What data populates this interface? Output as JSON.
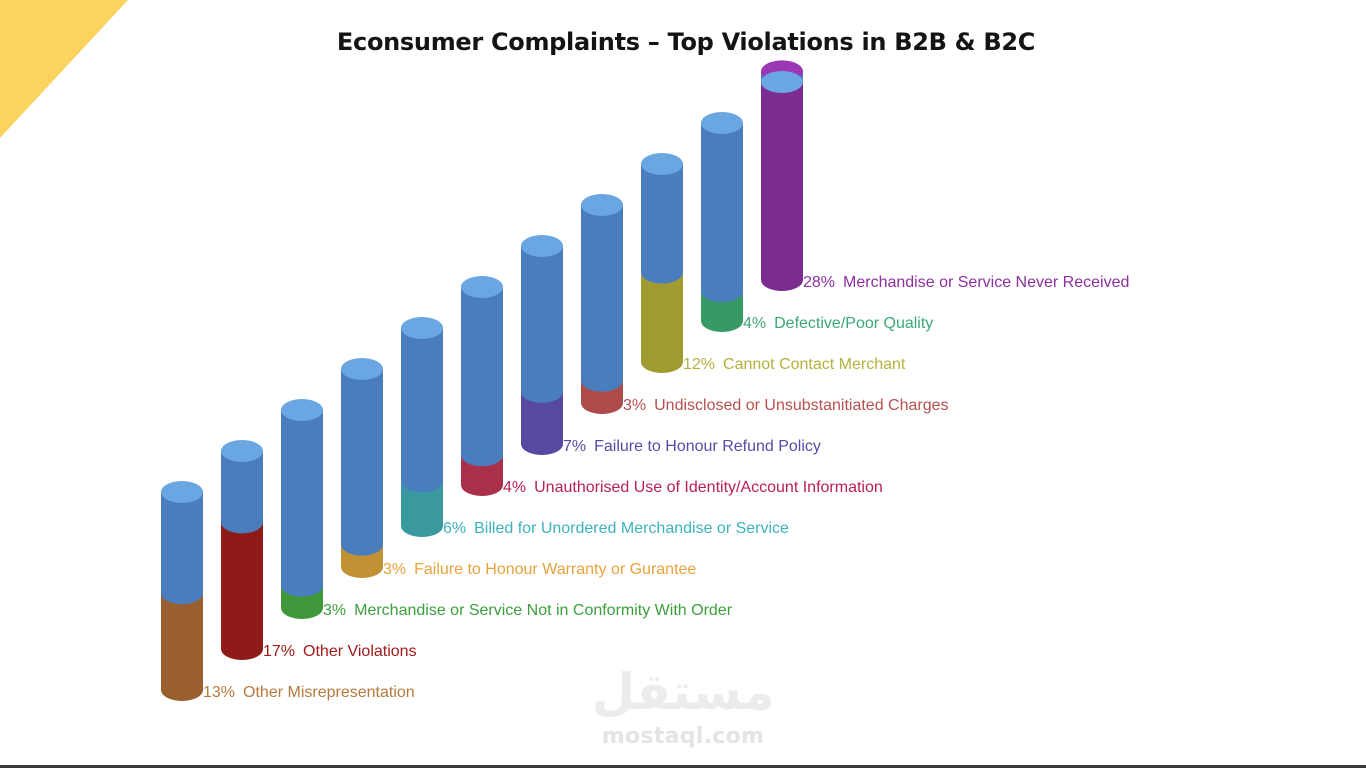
{
  "title": "Econsumer Complaints – Top Violations in B2B & B2C",
  "colors": {
    "background": "#ffffff",
    "corner_accent": "#fdd35f",
    "column_body": "#4a7dbd",
    "column_top": "#6aa6e2"
  },
  "watermark": {
    "arabic": "مستقل",
    "url": "mostaql.com"
  },
  "chart_data": {
    "type": "bar",
    "style": "3d-cylinder-columns",
    "title": "Econsumer Complaints – Top Violations in B2B & B2C",
    "unit": "%",
    "categories": [
      "Other Misrepresentation",
      "Other Violations",
      "Merchandise or Service Not in Conformity With Order",
      "Failure to Honour Warranty or Gurantee",
      "Billed for Unordered Merchandise or Service",
      "Unauthorised Use of Identity/Account Information",
      "Failure to Honour Refund Policy",
      "Undisclosed or Unsubstanitiated Charges",
      "Cannot Contact Merchant",
      "Defective/Poor Quality",
      "Merchandise or Service Never Received"
    ],
    "values": [
      13,
      17,
      3,
      3,
      6,
      4,
      7,
      3,
      12,
      4,
      28
    ],
    "value_labels": [
      "13%",
      "17%",
      "3%",
      "3%",
      "6%",
      "4%",
      "7%",
      "3%",
      "12%",
      "4%",
      "28%"
    ],
    "segment_colors": [
      "#c1773b",
      "#b3221f",
      "#4fbf4a",
      "#f2b540",
      "#48bfc7",
      "#d33b5c",
      "#6b5bc7",
      "#d85c5c",
      "#c9c33d",
      "#45c07e",
      "#9b36b5"
    ],
    "label_colors": [
      "#b57a3c",
      "#a01c1c",
      "#3c9f3c",
      "#e8a23b",
      "#3cb3be",
      "#b81f55",
      "#5a4aa5",
      "#b84f4f",
      "#b5b23b",
      "#3ca878",
      "#8e2fa0"
    ],
    "legend_placement": "inline labels beside columns",
    "grid": false
  }
}
